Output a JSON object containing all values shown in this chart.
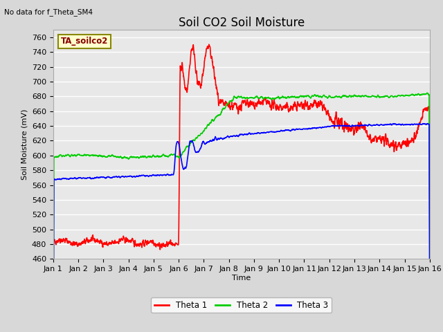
{
  "title": "Soil CO2 Soil Moisture",
  "no_data_text": "No data for f_Theta_SM4",
  "ylabel": "Soil Moisture (mV)",
  "xlabel": "Time",
  "annotation": "TA_soilco2",
  "ylim": [
    460,
    770
  ],
  "yticks": [
    460,
    480,
    500,
    520,
    540,
    560,
    580,
    600,
    620,
    640,
    660,
    680,
    700,
    720,
    740,
    760
  ],
  "xlim": [
    0,
    15
  ],
  "xtick_labels": [
    "Jan 1",
    "Jan 2",
    "Jan 3",
    "Jan 4",
    "Jan 5",
    "Jan 6",
    "Jan 7",
    "Jan 8",
    "Jan 9",
    "Jan 10",
    "Jan 11",
    "Jan 12",
    "Jan 13",
    "Jan 14",
    "Jan 15",
    "Jan 16"
  ],
  "legend_labels": [
    "Theta 1",
    "Theta 2",
    "Theta 3"
  ],
  "legend_colors": [
    "#ff0000",
    "#00cc00",
    "#0000ff"
  ],
  "line_width": 1.2,
  "bg_color": "#d8d8d8",
  "plot_bg_color": "#e8e8e8",
  "grid_color": "#ffffff",
  "title_fontsize": 12,
  "label_fontsize": 8,
  "tick_fontsize": 8
}
